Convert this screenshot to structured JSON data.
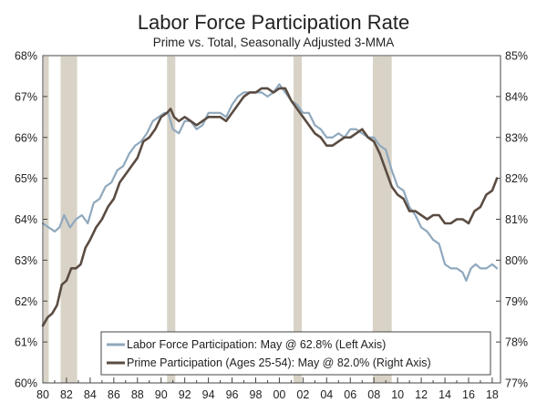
{
  "chart_data": {
    "type": "line",
    "title": "Labor Force Participation Rate",
    "subtitle": "Prime vs. Total, Seasonally Adjusted 3-MMA",
    "x_ticks": [
      "80",
      "82",
      "84",
      "86",
      "88",
      "90",
      "92",
      "94",
      "96",
      "98",
      "00",
      "02",
      "04",
      "06",
      "08",
      "10",
      "12",
      "14",
      "16",
      "18"
    ],
    "xlim": [
      1980,
      2018.7
    ],
    "left_axis": {
      "ylim": [
        60,
        68
      ],
      "tick_labels": [
        "60%",
        "61%",
        "62%",
        "63%",
        "64%",
        "65%",
        "66%",
        "67%",
        "68%"
      ]
    },
    "right_axis": {
      "ylim": [
        77,
        85
      ],
      "tick_labels": [
        "77%",
        "78%",
        "79%",
        "80%",
        "81%",
        "82%",
        "83%",
        "84%",
        "85%"
      ]
    },
    "grid": false,
    "legend": "bottom-right",
    "recessions": [
      [
        1980.0,
        1980.5
      ],
      [
        1981.5,
        1982.9
      ],
      [
        1990.5,
        1991.2
      ],
      [
        2001.2,
        2001.9
      ],
      [
        2007.9,
        2009.5
      ]
    ],
    "series": [
      {
        "name": "Labor Force Participation: May @ 62.8% (Left Axis)",
        "axis": "left",
        "color": "#8fa8bd",
        "x": [
          1980.0,
          1980.5,
          1981.0,
          1981.4,
          1981.8,
          1982.3,
          1982.8,
          1983.3,
          1983.8,
          1984.3,
          1984.8,
          1985.3,
          1985.8,
          1986.3,
          1986.8,
          1987.3,
          1987.8,
          1988.3,
          1988.8,
          1989.3,
          1989.8,
          1990.3,
          1990.6,
          1991.0,
          1991.5,
          1992.0,
          1992.5,
          1993.0,
          1993.5,
          1994.0,
          1994.5,
          1995.0,
          1995.5,
          1996.0,
          1996.5,
          1997.0,
          1997.5,
          1998.0,
          1998.5,
          1999.0,
          1999.5,
          2000.0,
          2000.5,
          2001.0,
          2001.5,
          2002.0,
          2002.5,
          2003.0,
          2003.5,
          2004.0,
          2004.5,
          2005.0,
          2005.5,
          2006.0,
          2006.5,
          2007.0,
          2007.5,
          2008.0,
          2008.5,
          2009.0,
          2009.5,
          2010.0,
          2010.5,
          2011.0,
          2011.5,
          2012.0,
          2012.5,
          2013.0,
          2013.5,
          2014.0,
          2014.5,
          2015.0,
          2015.5,
          2015.8,
          2016.2,
          2016.6,
          2017.0,
          2017.5,
          2018.0,
          2018.4
        ],
        "values": [
          63.9,
          63.8,
          63.7,
          63.8,
          64.1,
          63.8,
          64.0,
          64.1,
          63.9,
          64.4,
          64.5,
          64.8,
          64.9,
          65.2,
          65.3,
          65.6,
          65.8,
          65.9,
          66.1,
          66.4,
          66.5,
          66.6,
          66.6,
          66.2,
          66.1,
          66.4,
          66.4,
          66.2,
          66.3,
          66.6,
          66.6,
          66.6,
          66.5,
          66.8,
          67.0,
          67.1,
          67.1,
          67.1,
          67.1,
          67.0,
          67.1,
          67.3,
          67.1,
          66.9,
          66.8,
          66.6,
          66.6,
          66.3,
          66.2,
          66.0,
          66.0,
          66.1,
          66.0,
          66.2,
          66.2,
          66.1,
          66.0,
          66.0,
          65.8,
          65.7,
          65.2,
          64.8,
          64.7,
          64.3,
          64.1,
          63.8,
          63.7,
          63.5,
          63.4,
          62.9,
          62.8,
          62.8,
          62.7,
          62.5,
          62.8,
          62.9,
          62.8,
          62.8,
          62.9,
          62.8
        ]
      },
      {
        "name": "Prime Participation (Ages 25-54): May @ 82.0% (Right Axis)",
        "axis": "right",
        "color": "#5b4c42",
        "x": [
          1980.0,
          1980.4,
          1980.8,
          1981.2,
          1981.6,
          1982.0,
          1982.4,
          1982.8,
          1983.2,
          1983.6,
          1984.0,
          1984.5,
          1985.0,
          1985.5,
          1986.0,
          1986.5,
          1987.0,
          1987.5,
          1988.0,
          1988.5,
          1989.0,
          1989.5,
          1990.0,
          1990.5,
          1990.8,
          1991.1,
          1991.5,
          1992.0,
          1992.5,
          1993.0,
          1993.5,
          1994.0,
          1994.5,
          1995.0,
          1995.5,
          1996.0,
          1996.5,
          1997.0,
          1997.5,
          1998.0,
          1998.5,
          1999.0,
          1999.5,
          2000.0,
          2000.5,
          2001.0,
          2001.5,
          2002.0,
          2002.5,
          2003.0,
          2003.5,
          2004.0,
          2004.5,
          2005.0,
          2005.5,
          2006.0,
          2006.5,
          2007.0,
          2007.5,
          2008.0,
          2008.5,
          2009.0,
          2009.5,
          2010.0,
          2010.5,
          2011.0,
          2011.5,
          2012.0,
          2012.5,
          2013.0,
          2013.5,
          2014.0,
          2014.5,
          2015.0,
          2015.5,
          2016.0,
          2016.5,
          2017.0,
          2017.5,
          2018.0,
          2018.4
        ],
        "values": [
          78.4,
          78.6,
          78.7,
          78.9,
          79.4,
          79.5,
          79.8,
          79.8,
          79.9,
          80.3,
          80.5,
          80.8,
          81.0,
          81.3,
          81.5,
          81.9,
          82.1,
          82.3,
          82.5,
          82.9,
          83.0,
          83.2,
          83.5,
          83.6,
          83.7,
          83.5,
          83.4,
          83.5,
          83.4,
          83.3,
          83.4,
          83.5,
          83.5,
          83.5,
          83.4,
          83.6,
          83.8,
          84.0,
          84.1,
          84.1,
          84.2,
          84.2,
          84.1,
          84.2,
          84.2,
          83.9,
          83.7,
          83.5,
          83.3,
          83.1,
          83.0,
          82.8,
          82.8,
          82.9,
          83.0,
          83.0,
          83.1,
          83.2,
          83.0,
          82.9,
          82.6,
          82.2,
          81.8,
          81.6,
          81.5,
          81.2,
          81.2,
          81.1,
          81.0,
          81.1,
          81.1,
          80.9,
          80.9,
          81.0,
          81.0,
          80.9,
          81.2,
          81.3,
          81.6,
          81.7,
          82.0
        ]
      }
    ]
  }
}
